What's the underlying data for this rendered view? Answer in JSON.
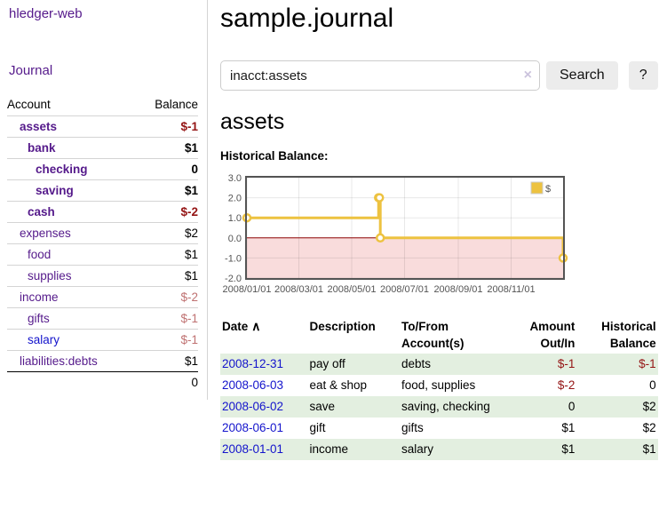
{
  "colors": {
    "purple": "#551a8b",
    "blue": "#1414cc",
    "neg": "#941414",
    "negsoft": "#bf7171",
    "stripe": "#e3efe0",
    "gold": "#edc240",
    "border-gray": "#d4d4d4",
    "tick": "#545454"
  },
  "app": {
    "title": "hledger-web",
    "nav_journal": "Journal"
  },
  "sidebar": {
    "table": {
      "headers": {
        "account": "Account",
        "balance": "Balance"
      },
      "rows": [
        {
          "name": "assets",
          "balance": "$-1",
          "level": 1,
          "bold": true,
          "balance_color": "neg"
        },
        {
          "name": "bank",
          "balance": "$1",
          "level": 2,
          "bold": true
        },
        {
          "name": "checking",
          "balance": "0",
          "level": 3,
          "bold": true
        },
        {
          "name": "saving",
          "balance": "$1",
          "level": 3,
          "bold": true
        },
        {
          "name": "cash",
          "balance": "$-2",
          "level": 2,
          "bold": true,
          "balance_color": "neg"
        },
        {
          "name": "expenses",
          "balance": "$2",
          "level": 1
        },
        {
          "name": "food",
          "balance": "$1",
          "level": 2
        },
        {
          "name": "supplies",
          "balance": "$1",
          "level": 2
        },
        {
          "name": "income",
          "balance": "$-2",
          "level": 1,
          "balance_color": "negsoft"
        },
        {
          "name": "gifts",
          "balance": "$-1",
          "level": 2,
          "balance_color": "negsoft"
        },
        {
          "name": "salary",
          "balance": "$-1",
          "level": 2,
          "balance_color": "negsoft",
          "link_color": "blue"
        },
        {
          "name": "liabilities:debts",
          "balance": "$1",
          "level": 1
        }
      ],
      "total": "0"
    }
  },
  "main": {
    "title": "sample.journal",
    "search": {
      "value": "inacct:assets",
      "clear_icon": "×",
      "button": "Search",
      "help_button": "?"
    },
    "account_heading": "assets",
    "chart_label": "Historical Balance:"
  },
  "chart_data": {
    "type": "line",
    "title": "Historical Balance",
    "step": true,
    "series": [
      {
        "name": "$",
        "color": "#edc240",
        "points": [
          [
            "2008-01-01",
            1
          ],
          [
            "2008-06-01",
            2
          ],
          [
            "2008-06-02",
            2
          ],
          [
            "2008-06-03",
            0
          ],
          [
            "2008-12-31",
            -1
          ]
        ]
      }
    ],
    "x_ticks": [
      "2008/01/01",
      "2008/03/01",
      "2008/05/01",
      "2008/07/01",
      "2008/09/01",
      "2008/11/01"
    ],
    "y_ticks": [
      "3.0",
      "2.0",
      "1.0",
      "0.0",
      "-1.0",
      "-2.0"
    ],
    "xlim": [
      "2008-01-01",
      "2008-12-31"
    ],
    "ylim": [
      -2,
      3
    ],
    "grid": true,
    "negative_region_color": "#f9dcdc",
    "zero_line_color": "#8b0000",
    "plot_border_color": "#545454",
    "legend": {
      "label": "$",
      "position": "top-right"
    }
  },
  "register": {
    "headers": {
      "date": "Date",
      "sort_icon": "∧",
      "description": "Description",
      "account": "To/From Account(s)",
      "amount": "Amount Out/In",
      "balance": "Historical Balance"
    },
    "rows": [
      {
        "date": "2008-12-31",
        "description": "pay off",
        "account": "debts",
        "amount": "$-1",
        "balance": "$-1",
        "amount_color": "neg",
        "balance_color": "neg"
      },
      {
        "date": "2008-06-03",
        "description": "eat & shop",
        "account": "food, supplies",
        "amount": "$-2",
        "balance": "0",
        "amount_color": "neg"
      },
      {
        "date": "2008-06-02",
        "description": "save",
        "account": "saving, checking",
        "amount": "0",
        "balance": "$2"
      },
      {
        "date": "2008-06-01",
        "description": "gift",
        "account": "gifts",
        "amount": "$1",
        "balance": "$2"
      },
      {
        "date": "2008-01-01",
        "description": "income",
        "account": "salary",
        "amount": "$1",
        "balance": "$1"
      }
    ]
  }
}
